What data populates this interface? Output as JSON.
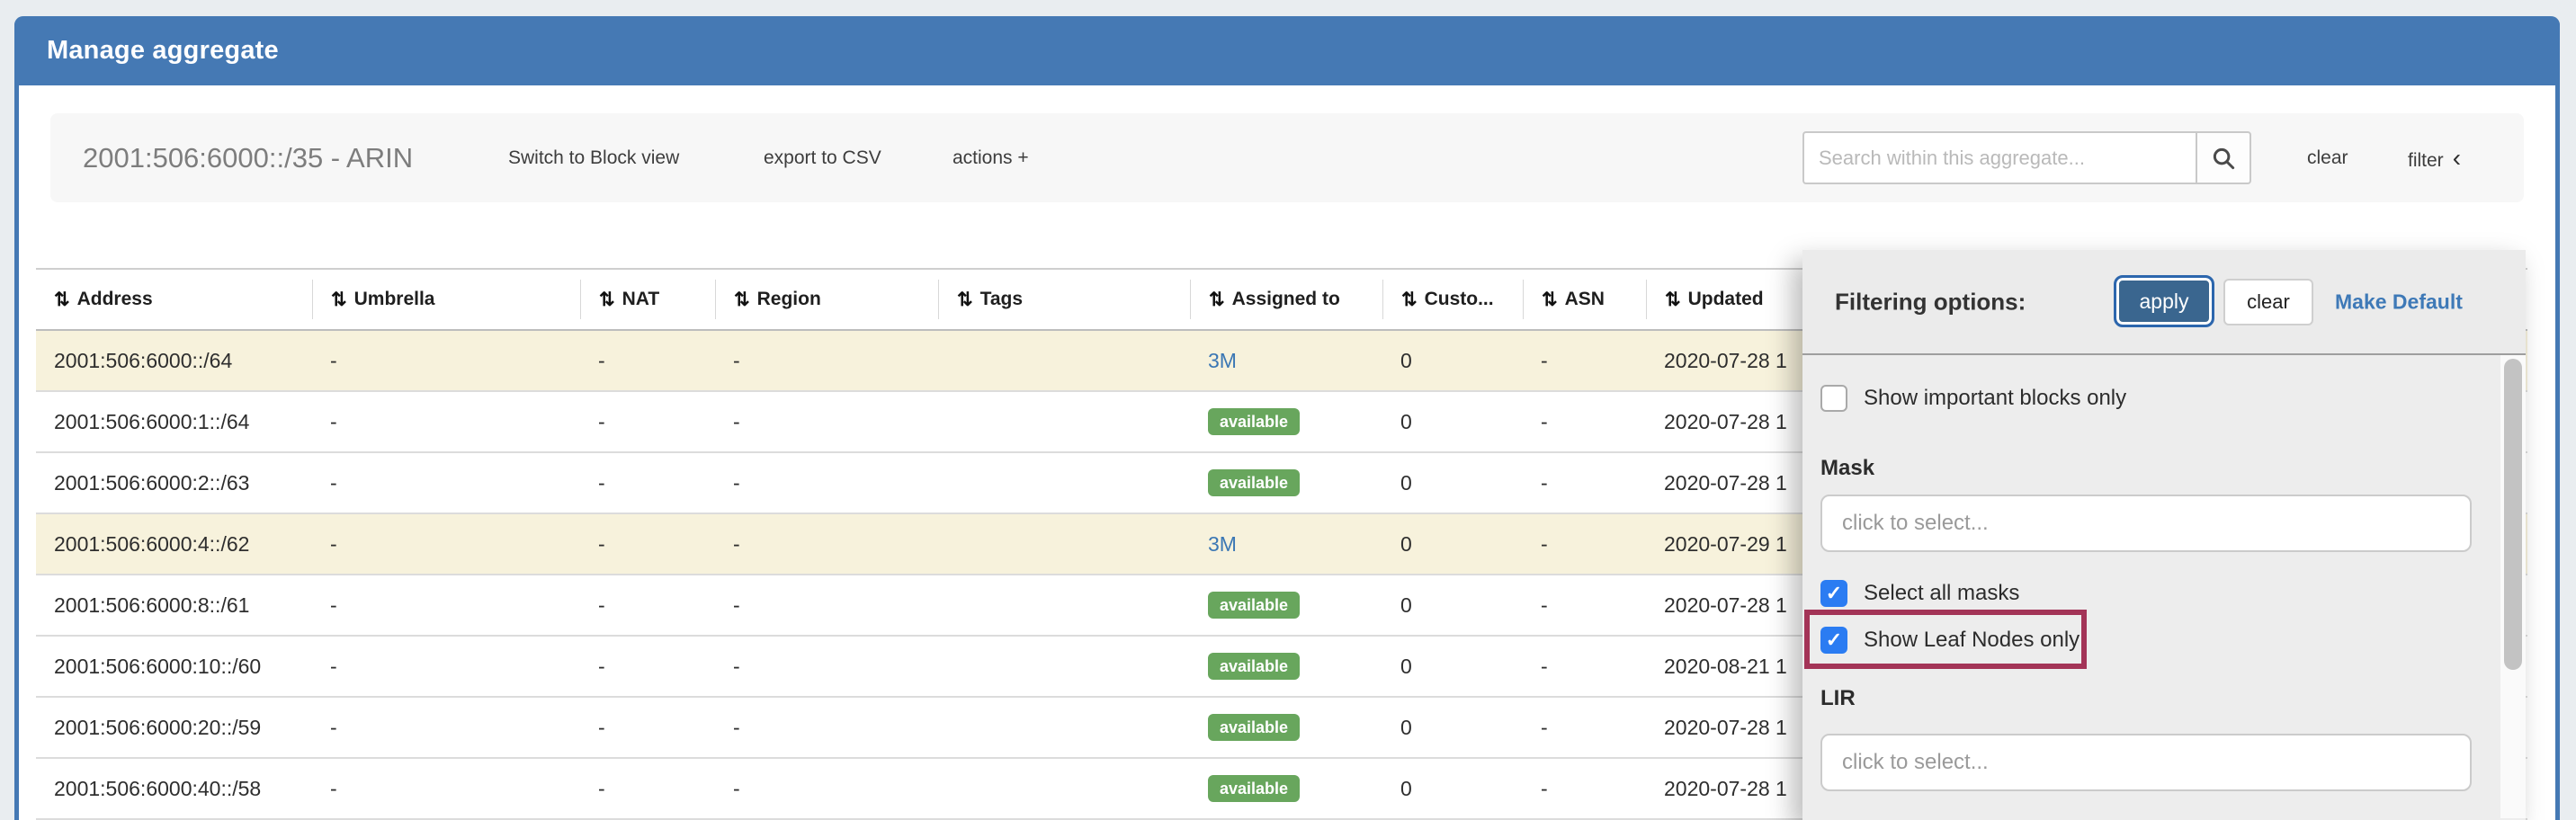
{
  "window": {
    "title": "Manage aggregate"
  },
  "toolbar": {
    "aggregate_title": "2001:506:6000::/35 - ARIN",
    "switch_view_label": "Switch to Block view",
    "export_csv_label": "export to CSV",
    "actions_label": "actions +",
    "search_placeholder": "Search within this aggregate...",
    "search_icon": "magnifier",
    "clear_label": "clear",
    "filter_label": "filter",
    "filter_chevron": "‹"
  },
  "table": {
    "sort_icon": "⇅",
    "columns": [
      "Address",
      "Umbrella",
      "NAT",
      "Region",
      "Tags",
      "Assigned to",
      "Custo...",
      "ASN",
      "Updated"
    ],
    "rows": [
      {
        "address": "2001:506:6000::/64",
        "umbrella": "-",
        "nat": "-",
        "region": "-",
        "tags": "",
        "assigned": {
          "type": "link",
          "label": "3M"
        },
        "customers": "0",
        "asn": "-",
        "updated": "2020-07-28 1",
        "highlighted": true
      },
      {
        "address": "2001:506:6000:1::/64",
        "umbrella": "-",
        "nat": "-",
        "region": "-",
        "tags": "",
        "assigned": {
          "type": "badge",
          "label": "available"
        },
        "customers": "0",
        "asn": "-",
        "updated": "2020-07-28 1",
        "highlighted": false
      },
      {
        "address": "2001:506:6000:2::/63",
        "umbrella": "-",
        "nat": "-",
        "region": "-",
        "tags": "",
        "assigned": {
          "type": "badge",
          "label": "available"
        },
        "customers": "0",
        "asn": "-",
        "updated": "2020-07-28 1",
        "highlighted": false
      },
      {
        "address": "2001:506:6000:4::/62",
        "umbrella": "-",
        "nat": "-",
        "region": "-",
        "tags": "",
        "assigned": {
          "type": "link",
          "label": "3M"
        },
        "customers": "0",
        "asn": "-",
        "updated": "2020-07-29 1",
        "highlighted": true
      },
      {
        "address": "2001:506:6000:8::/61",
        "umbrella": "-",
        "nat": "-",
        "region": "-",
        "tags": "",
        "assigned": {
          "type": "badge",
          "label": "available"
        },
        "customers": "0",
        "asn": "-",
        "updated": "2020-07-28 1",
        "highlighted": false
      },
      {
        "address": "2001:506:6000:10::/60",
        "umbrella": "-",
        "nat": "-",
        "region": "-",
        "tags": "",
        "assigned": {
          "type": "badge",
          "label": "available"
        },
        "customers": "0",
        "asn": "-",
        "updated": "2020-08-21 1",
        "highlighted": false
      },
      {
        "address": "2001:506:6000:20::/59",
        "umbrella": "-",
        "nat": "-",
        "region": "-",
        "tags": "",
        "assigned": {
          "type": "badge",
          "label": "available"
        },
        "customers": "0",
        "asn": "-",
        "updated": "2020-07-28 1",
        "highlighted": false
      },
      {
        "address": "2001:506:6000:40::/58",
        "umbrella": "-",
        "nat": "-",
        "region": "-",
        "tags": "",
        "assigned": {
          "type": "badge",
          "label": "available"
        },
        "customers": "0",
        "asn": "-",
        "updated": "2020-07-28 1",
        "highlighted": false
      }
    ]
  },
  "filter_panel": {
    "title": "Filtering options:",
    "apply_label": "apply",
    "clear_label": "clear",
    "make_default_label": "Make Default",
    "show_important": {
      "label": "Show important blocks only",
      "checked": false
    },
    "mask": {
      "label": "Mask",
      "placeholder": "click to select..."
    },
    "select_all_masks": {
      "label": "Select all masks",
      "checked": true
    },
    "show_leaf_nodes": {
      "label": "Show Leaf Nodes only",
      "checked": true,
      "annotated": true
    },
    "lir": {
      "label": "LIR",
      "placeholder": "click to select..."
    }
  },
  "colors": {
    "header_blue": "#4579b4",
    "row_highlight_beige": "#f7f2dc",
    "badge_green": "#68a65d",
    "link_blue": "#3b77b4",
    "apply_button_blue": "#3a668f",
    "checkbox_blue": "#2b7cf2",
    "annotation_maroon": "#a33457",
    "page_background": "#e9edf0"
  }
}
